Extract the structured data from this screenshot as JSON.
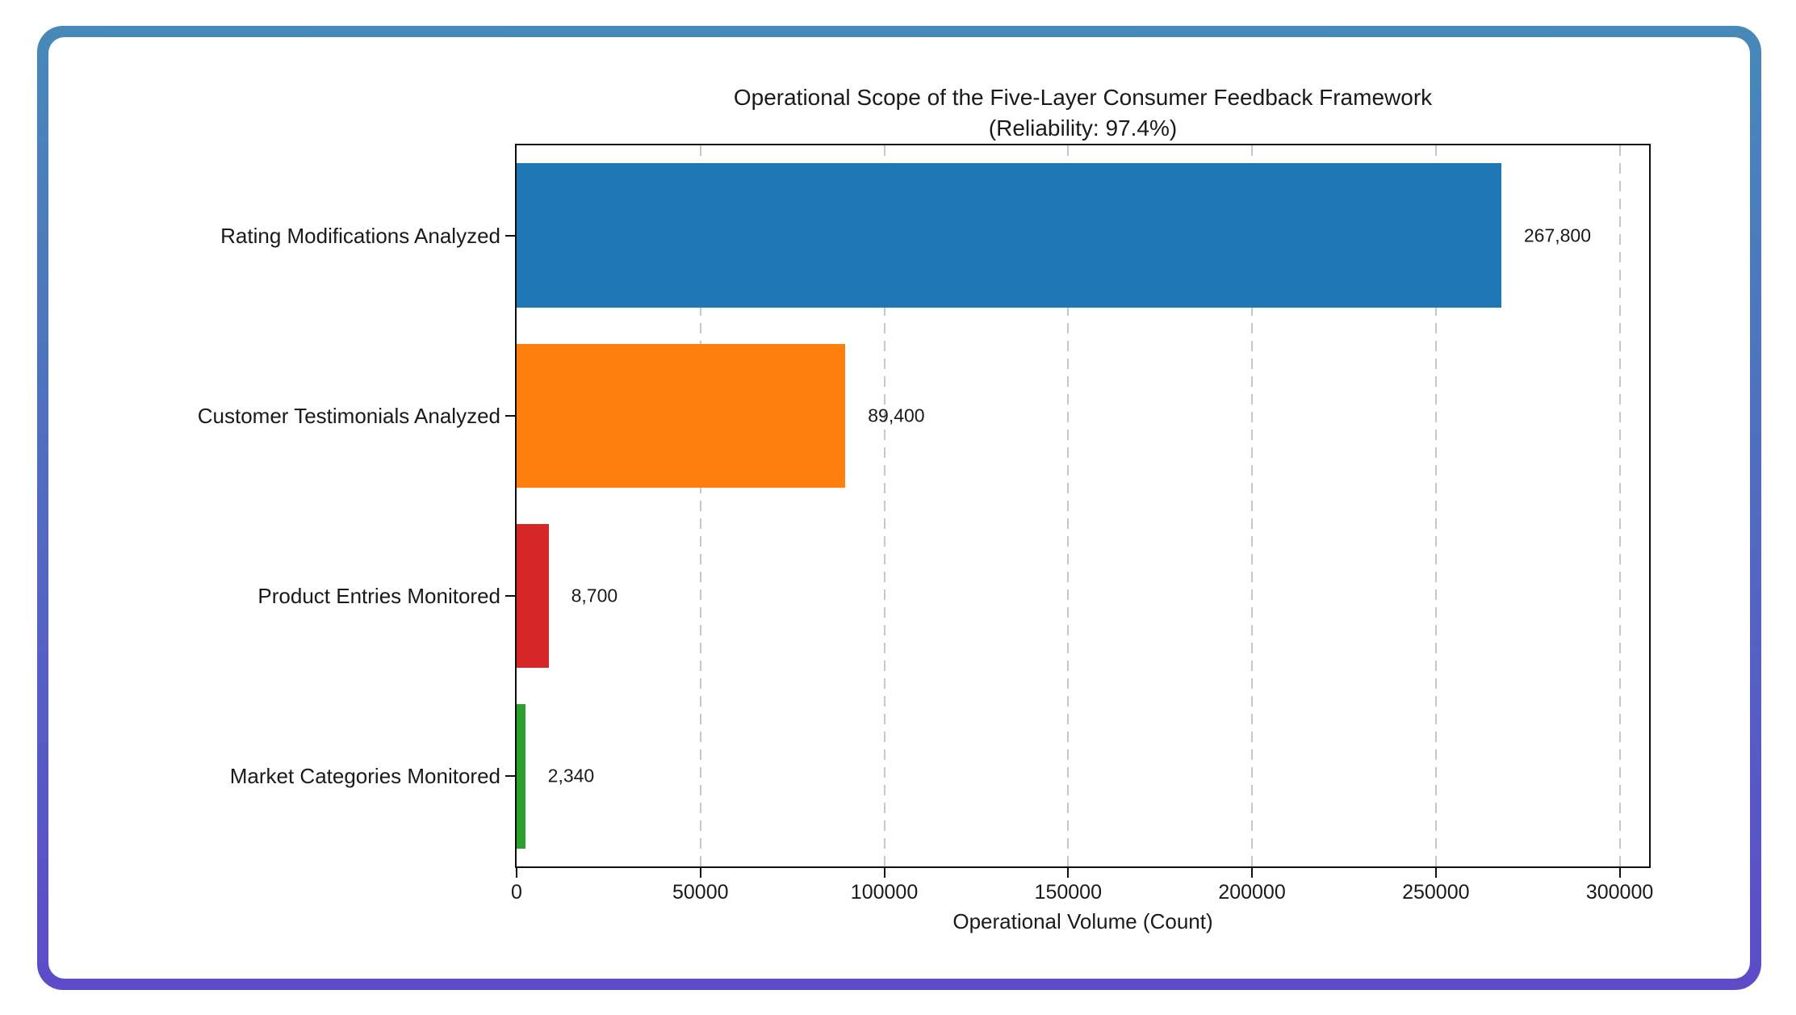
{
  "frame": {
    "border_gradient_top": "#4789b9",
    "border_gradient_bottom": "#5d4bc8",
    "background": "#ffffff"
  },
  "chart_data": {
    "type": "bar",
    "orientation": "horizontal",
    "title_line1": "Operational Scope of the Five-Layer Consumer Feedback Framework",
    "title_line2": "(Reliability: 97.4%)",
    "categories": [
      "Rating Modifications Analyzed",
      "Customer Testimonials Analyzed",
      "Product Entries Monitored",
      "Market Categories Monitored"
    ],
    "values": [
      267800,
      89400,
      8700,
      2340
    ],
    "value_labels": [
      "267,800",
      "89,400",
      "8,700",
      "2,340"
    ],
    "bar_colors": [
      "#1f77b4",
      "#ff7f0e",
      "#d62728",
      "#2ca02c"
    ],
    "xlabel": "Operational Volume (Count)",
    "x_ticks": [
      0,
      50000,
      100000,
      150000,
      200000,
      250000,
      300000
    ],
    "x_tick_labels": [
      "0",
      "50000",
      "100000",
      "150000",
      "200000",
      "250000",
      "300000"
    ],
    "xlim": [
      0,
      308000
    ],
    "grid": "vertical-dashed",
    "gridline_color": "#c7c7c7",
    "legend": "none"
  }
}
